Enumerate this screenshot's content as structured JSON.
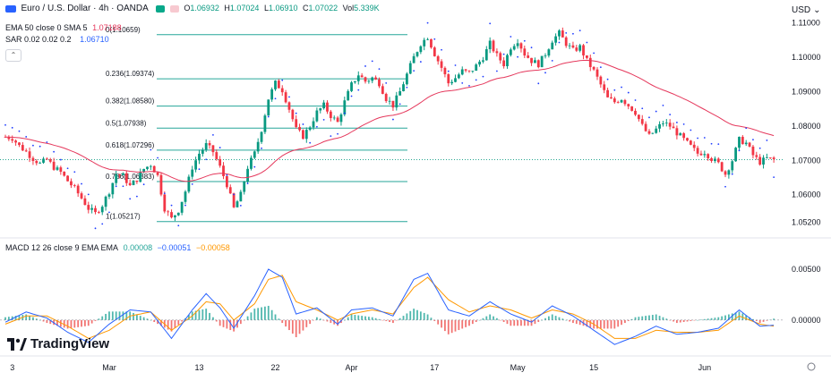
{
  "header": {
    "symbol": "Euro / U.S. Dollar · 4h · OANDA",
    "ohlc": {
      "o_label": "O",
      "o": "1.06932",
      "h_label": "H",
      "h": "1.07024",
      "l_label": "L",
      "l": "1.06910",
      "c_label": "C",
      "c": "1.07022"
    },
    "vol_label": "Vol",
    "vol": "5.339K",
    "currency": "USD"
  },
  "indicators": {
    "ema_sma": {
      "label": "EMA 50 close 0 SMA 5",
      "value": "1.07188",
      "color": "#e5385c"
    },
    "sar": {
      "label": "SAR 0.02 0.02 0.2",
      "value": "1.06710",
      "color": "#2962ff"
    },
    "macd": {
      "label": "MACD 12 26 close 9 EMA EMA",
      "hist": "0.00008",
      "macd": "−0.00051",
      "signal": "−0.00058",
      "macd_color": "#2962ff",
      "signal_color": "#ff9800"
    }
  },
  "colors": {
    "up": "#089981",
    "down": "#f23645",
    "fib": "#26a69a",
    "ema": "#e5385c",
    "sar": "#1e3cff",
    "macd_line": "#2962ff",
    "signal_line": "#ff9800",
    "hist_pos": "#26a69a",
    "hist_neg": "#ef5350"
  },
  "logo": {
    "text": "TradingView",
    "icon": "tradingview-logo-icon"
  },
  "chart_data": [
    {
      "type": "candlestick",
      "title": "Euro / U.S. Dollar · 4h · OANDA",
      "y_axis_label": "USD",
      "y_ticks": [
        "1.11000",
        "1.10000",
        "1.09000",
        "1.08000",
        "1.07000",
        "1.06000",
        "1.05200"
      ],
      "ylim": [
        1.0495,
        1.112
      ],
      "x_ticks": [
        "3",
        "Mar",
        "13",
        "22",
        "Apr",
        "17",
        "May",
        "15",
        "Jun"
      ],
      "current_price": 1.07022,
      "fibonacci": [
        {
          "label": "0(1.10659)",
          "value": 1.10659
        },
        {
          "label": "0.236(1.09374)",
          "value": 1.09374
        },
        {
          "label": "0.382(1.08580)",
          "value": 1.0858
        },
        {
          "label": "0.5(1.07938)",
          "value": 1.07938
        },
        {
          "label": "0.618(1.07296)",
          "value": 1.07296
        },
        {
          "label": "0.786(1.06383)",
          "value": 1.06383
        },
        {
          "label": "1(1.05217)",
          "value": 1.05217
        }
      ],
      "close_path": [
        [
          0,
          1.0768
        ],
        [
          2,
          1.0765
        ],
        [
          4,
          1.0742
        ],
        [
          6,
          1.0725
        ],
        [
          8,
          1.0705
        ],
        [
          10,
          1.069
        ],
        [
          12,
          1.0702
        ],
        [
          14,
          1.068
        ],
        [
          16,
          1.0665
        ],
        [
          18,
          1.064
        ],
        [
          20,
          1.0618
        ],
        [
          22,
          1.059
        ],
        [
          24,
          1.056
        ],
        [
          26,
          1.0545
        ],
        [
          28,
          1.057
        ],
        [
          30,
          1.061
        ],
        [
          32,
          1.066
        ],
        [
          34,
          1.0655
        ],
        [
          36,
          1.0625
        ],
        [
          38,
          1.0645
        ],
        [
          40,
          1.0675
        ],
        [
          42,
          1.0688
        ],
        [
          44,
          1.0655
        ],
        [
          46,
          1.056
        ],
        [
          48,
          1.053
        ],
        [
          50,
          1.0555
        ],
        [
          52,
          1.061
        ],
        [
          54,
          1.068
        ],
        [
          56,
          1.072
        ],
        [
          58,
          1.0745
        ],
        [
          60,
          1.0725
        ],
        [
          62,
          1.068
        ],
        [
          64,
          1.063
        ],
        [
          66,
          1.056
        ],
        [
          68,
          1.06
        ],
        [
          70,
          1.068
        ],
        [
          72,
          1.072
        ],
        [
          74,
          1.079
        ],
        [
          76,
          1.088
        ],
        [
          78,
          1.0925
        ],
        [
          80,
          1.0905
        ],
        [
          82,
          1.085
        ],
        [
          84,
          1.079
        ],
        [
          86,
          1.077
        ],
        [
          88,
          1.08
        ],
        [
          90,
          1.084
        ],
        [
          92,
          1.086
        ],
        [
          94,
          1.083
        ],
        [
          96,
          1.081
        ],
        [
          98,
          1.087
        ],
        [
          100,
          1.092
        ],
        [
          102,
          1.095
        ],
        [
          104,
          1.093
        ],
        [
          106,
          1.094
        ],
        [
          108,
          1.0925
        ],
        [
          110,
          1.088
        ],
        [
          112,
          1.086
        ],
        [
          114,
          1.09
        ],
        [
          116,
          1.095
        ],
        [
          118,
          1.1
        ],
        [
          120,
          1.104
        ],
        [
          122,
          1.106
        ],
        [
          124,
          1.101
        ],
        [
          126,
          1.097
        ],
        [
          128,
          1.0925
        ],
        [
          130,
          1.094
        ],
        [
          132,
          1.096
        ],
        [
          134,
          1.0955
        ],
        [
          136,
          1.0975
        ],
        [
          138,
          1.1
        ],
        [
          140,
          1.104
        ],
        [
          142,
          1.1005
        ],
        [
          144,
          1.098
        ],
        [
          146,
          1.103
        ],
        [
          148,
          1.105
        ],
        [
          150,
          1.101
        ],
        [
          152,
          1.099
        ],
        [
          154,
          1.098
        ],
        [
          156,
          1.101
        ],
        [
          158,
          1.105
        ],
        [
          160,
          1.107
        ],
        [
          162,
          1.104
        ],
        [
          164,
          1.102
        ],
        [
          166,
          1.103
        ],
        [
          168,
          1.099
        ],
        [
          170,
          1.096
        ],
        [
          172,
          1.092
        ],
        [
          174,
          1.088
        ],
        [
          176,
          1.087
        ],
        [
          178,
          1.088
        ],
        [
          180,
          1.086
        ],
        [
          182,
          1.084
        ],
        [
          184,
          1.08
        ],
        [
          186,
          1.077
        ],
        [
          188,
          1.079
        ],
        [
          190,
          1.081
        ],
        [
          192,
          1.08
        ],
        [
          194,
          1.078
        ],
        [
          196,
          1.076
        ],
        [
          198,
          1.074
        ],
        [
          200,
          1.072
        ],
        [
          202,
          1.0725
        ],
        [
          204,
          1.0705
        ],
        [
          206,
          1.069
        ],
        [
          208,
          1.066
        ],
        [
          210,
          1.07
        ],
        [
          212,
          1.076
        ],
        [
          214,
          1.075
        ],
        [
          216,
          1.0715
        ],
        [
          218,
          1.0695
        ],
        [
          220,
          1.0705
        ],
        [
          222,
          1.0702
        ]
      ]
    },
    {
      "type": "macd",
      "title": "MACD 12 26 close 9 EMA EMA",
      "y_ticks": [
        "0.00500",
        "0.00000"
      ],
      "ylim": [
        -0.003,
        0.0072
      ],
      "macd_path": [
        [
          0,
          -0.0002
        ],
        [
          6,
          0.0008
        ],
        [
          12,
          0.0002
        ],
        [
          18,
          -0.0012
        ],
        [
          24,
          -0.0022
        ],
        [
          30,
          -0.0004
        ],
        [
          36,
          0.001
        ],
        [
          42,
          0.0008
        ],
        [
          48,
          -0.0018
        ],
        [
          54,
          0.001
        ],
        [
          58,
          0.0026
        ],
        [
          62,
          0.0012
        ],
        [
          66,
          -0.0008
        ],
        [
          72,
          0.0024
        ],
        [
          76,
          0.005
        ],
        [
          80,
          0.0042
        ],
        [
          84,
          0.0006
        ],
        [
          90,
          0.0012
        ],
        [
          96,
          -0.0004
        ],
        [
          100,
          0.001
        ],
        [
          106,
          0.0012
        ],
        [
          112,
          0.0004
        ],
        [
          118,
          0.004
        ],
        [
          122,
          0.0046
        ],
        [
          128,
          0.001
        ],
        [
          134,
          0.0004
        ],
        [
          140,
          0.0018
        ],
        [
          146,
          0.0006
        ],
        [
          152,
          -0.0002
        ],
        [
          158,
          0.0014
        ],
        [
          164,
          0.0004
        ],
        [
          170,
          -0.001
        ],
        [
          176,
          -0.0024
        ],
        [
          182,
          -0.0016
        ],
        [
          188,
          -0.0006
        ],
        [
          194,
          -0.0014
        ],
        [
          200,
          -0.0012
        ],
        [
          206,
          -0.0008
        ],
        [
          212,
          0.001
        ],
        [
          218,
          -0.0006
        ],
        [
          222,
          -0.0005
        ]
      ],
      "signal_path": [
        [
          0,
          -0.0004
        ],
        [
          6,
          0.0004
        ],
        [
          12,
          0.0004
        ],
        [
          18,
          -0.0006
        ],
        [
          24,
          -0.0018
        ],
        [
          30,
          -0.001
        ],
        [
          36,
          0.0004
        ],
        [
          42,
          0.0008
        ],
        [
          48,
          -0.001
        ],
        [
          54,
          0.0004
        ],
        [
          58,
          0.0018
        ],
        [
          62,
          0.0016
        ],
        [
          66,
          0.0
        ],
        [
          72,
          0.0016
        ],
        [
          76,
          0.004
        ],
        [
          80,
          0.0044
        ],
        [
          84,
          0.0018
        ],
        [
          90,
          0.001
        ],
        [
          96,
          0.0
        ],
        [
          100,
          0.0006
        ],
        [
          106,
          0.001
        ],
        [
          112,
          0.0006
        ],
        [
          118,
          0.0032
        ],
        [
          122,
          0.0042
        ],
        [
          128,
          0.002
        ],
        [
          134,
          0.0008
        ],
        [
          140,
          0.0014
        ],
        [
          146,
          0.001
        ],
        [
          152,
          0.0002
        ],
        [
          158,
          0.001
        ],
        [
          164,
          0.0006
        ],
        [
          170,
          -0.0004
        ],
        [
          176,
          -0.0018
        ],
        [
          182,
          -0.0018
        ],
        [
          188,
          -0.001
        ],
        [
          194,
          -0.0012
        ],
        [
          200,
          -0.0012
        ],
        [
          206,
          -0.001
        ],
        [
          212,
          0.0004
        ],
        [
          218,
          -0.0004
        ],
        [
          222,
          -0.0006
        ]
      ]
    }
  ]
}
